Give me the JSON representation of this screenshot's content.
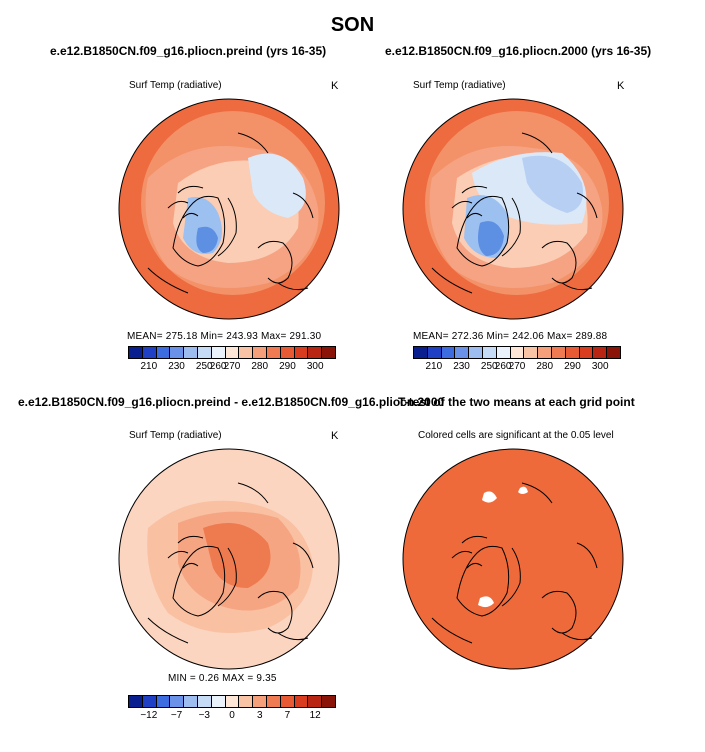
{
  "title": "SON",
  "panels": {
    "top_left": {
      "title": "e.e12.B1850CN.f09_g16.pliocn.preind (yrs 16-35)",
      "var_label": "Surf Temp (radiative)",
      "units": "K",
      "stats": "MEAN= 275.18   Min= 243.93   Max= 291.30"
    },
    "top_right": {
      "title": "e.e12.B1850CN.f09_g16.pliocn.2000 (yrs 16-35)",
      "var_label": "Surf Temp (radiative)",
      "units": "K",
      "stats": "MEAN= 272.36   Min= 242.06   Max= 289.88"
    },
    "bottom_left": {
      "title": "e.e12.B1850CN.f09_g16.pliocn.preind - e.e12.B1850CN.f09_g16.pliocn.2000",
      "var_label": "Surf Temp (radiative)",
      "units": "K",
      "stats": "MIN =     0.26  MAX =      9.35"
    },
    "bottom_right": {
      "title": "T-test of the two means at each grid point",
      "var_label": "Colored cells are significant at the 0.05 level"
    }
  },
  "colorbars": {
    "absolute": {
      "colors": [
        "#0a1f8f",
        "#1f3fc4",
        "#3d6be0",
        "#6a92e8",
        "#9dbcf0",
        "#c6dbf5",
        "#eaf2fb",
        "#fde6d6",
        "#f9c4a5",
        "#f5a07a",
        "#f07b52",
        "#e85a34",
        "#d93c1f",
        "#b82512",
        "#8a1408"
      ],
      "labels": [
        "210",
        "230",
        "250",
        "260",
        "270",
        "280",
        "290",
        "300"
      ]
    },
    "difference": {
      "colors": [
        "#0a1f8f",
        "#1f3fc4",
        "#3d6be0",
        "#6a92e8",
        "#9dbcf0",
        "#c6dbf5",
        "#eaf2fb",
        "#fde6d6",
        "#f9c4a5",
        "#f5a07a",
        "#f07b52",
        "#e85a34",
        "#d93c1f",
        "#b82512",
        "#8a1408"
      ],
      "labels": [
        "−12",
        "−7",
        "−3",
        "0",
        "3",
        "7",
        "12"
      ]
    }
  },
  "map_colors": {
    "warm_outer": "#ee6a3f",
    "warm_mid": "#f6a383",
    "warm_light": "#fbcdb4",
    "cool_light": "#dbe8f8",
    "cool_mid": "#9cc0f0",
    "cool_dark": "#5d8fe3",
    "diff_base": "#f9c9b0",
    "diff_hot": "#ee7a4f",
    "ttest_fill": "#ef6a3a"
  }
}
